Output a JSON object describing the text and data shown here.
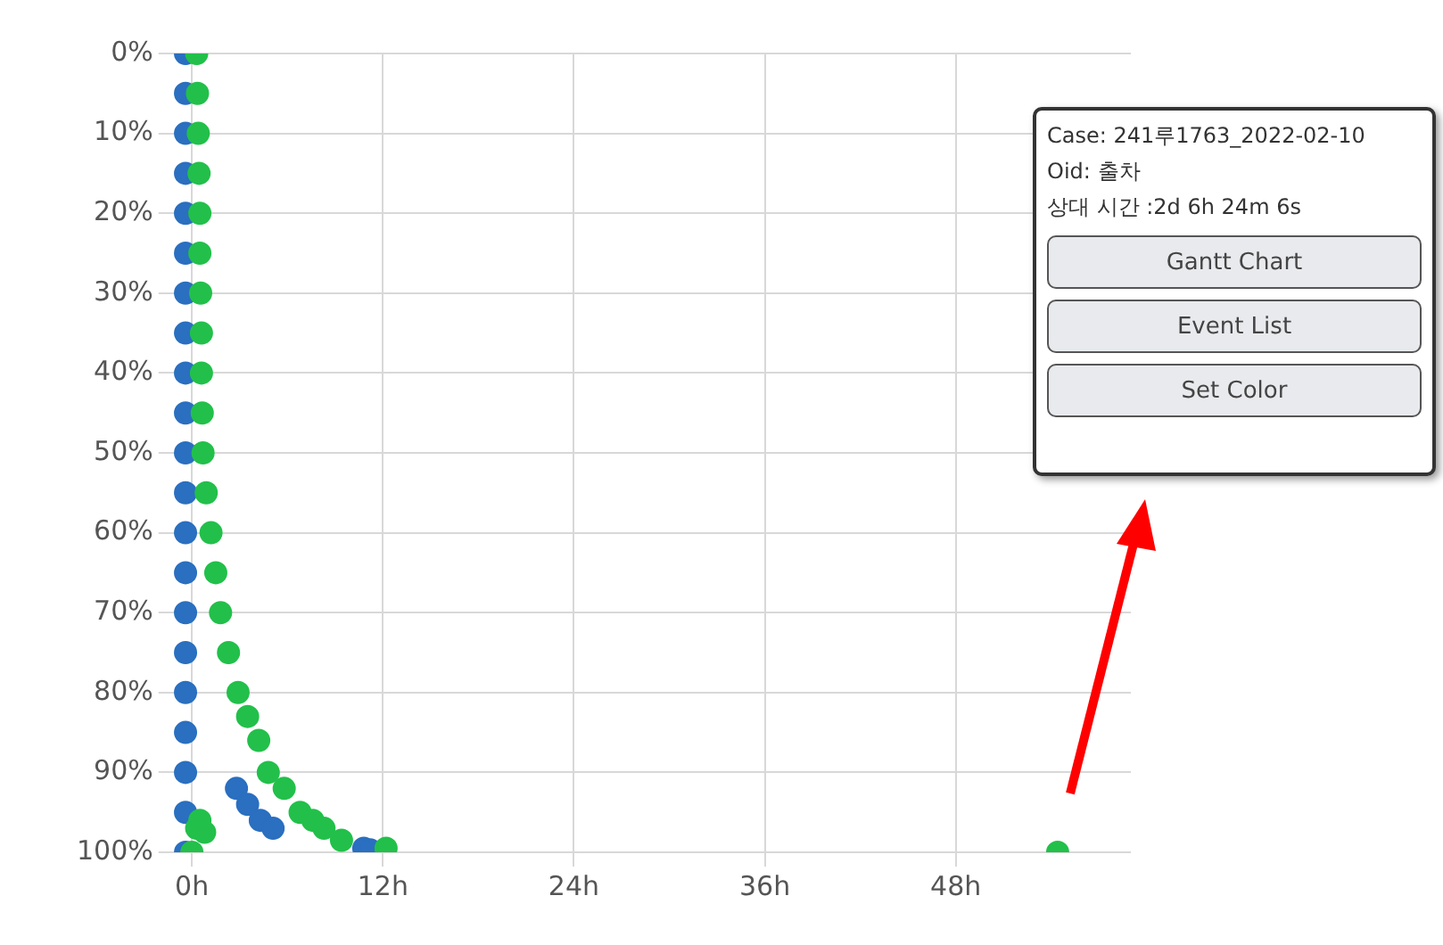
{
  "chart_data": {
    "type": "scatter",
    "xlim": [
      -1.2,
      59
    ],
    "xticks": [
      {
        "value": 0,
        "label": "0h"
      },
      {
        "value": 12,
        "label": "12h"
      },
      {
        "value": 24,
        "label": "24h"
      },
      {
        "value": 36,
        "label": "36h"
      },
      {
        "value": 48,
        "label": "48h"
      }
    ],
    "ylim": [
      100,
      0
    ],
    "yticks": [
      {
        "value": 0,
        "label": "0%"
      },
      {
        "value": 10,
        "label": "10%"
      },
      {
        "value": 20,
        "label": "20%"
      },
      {
        "value": 30,
        "label": "30%"
      },
      {
        "value": 40,
        "label": "40%"
      },
      {
        "value": 50,
        "label": "50%"
      },
      {
        "value": 60,
        "label": "60%"
      },
      {
        "value": 70,
        "label": "70%"
      },
      {
        "value": 80,
        "label": "80%"
      },
      {
        "value": 90,
        "label": "90%"
      },
      {
        "value": 100,
        "label": "100%"
      }
    ],
    "grid": true,
    "legend": false,
    "marker": "circle",
    "series": [
      {
        "color": "#2a6fc0",
        "x": [
          -0.4,
          -0.4,
          -0.4,
          -0.4,
          -0.4,
          -0.4,
          -0.4,
          -0.4,
          -0.4,
          -0.4,
          -0.4,
          -0.4,
          -0.4,
          -0.4,
          -0.4,
          -0.4,
          -0.4,
          -0.4,
          -0.4,
          -0.4,
          -0.4,
          2.8,
          3.5,
          4.3,
          5.1,
          10.8,
          11.2
        ],
        "values": [
          0,
          5,
          10,
          15,
          20,
          25,
          30,
          35,
          40,
          45,
          50,
          55,
          60,
          65,
          70,
          75,
          80,
          85,
          90,
          95,
          100,
          92,
          94,
          96,
          97,
          99.5,
          99.7
        ]
      },
      {
        "color": "#22c04a",
        "x": [
          0.3,
          0.35,
          0.4,
          0.45,
          0.5,
          0.5,
          0.55,
          0.6,
          0.6,
          0.65,
          0.7,
          0.9,
          1.2,
          1.5,
          1.8,
          2.3,
          2.9,
          3.5,
          4.2,
          4.8,
          5.8,
          6.8,
          7.6,
          8.3,
          9.4,
          12.2,
          0,
          0.3,
          0.5,
          0.8,
          54.4
        ],
        "values": [
          0,
          5,
          10,
          15,
          20,
          25,
          30,
          35,
          40,
          45,
          50,
          55,
          60,
          65,
          70,
          75,
          80,
          83,
          86,
          90,
          92,
          95,
          96,
          97,
          98.5,
          99.5,
          100,
          97,
          96,
          97.5,
          100
        ]
      }
    ],
    "annotations": [
      "Case: 241루1763_2022-02-10",
      "Oid: 출차",
      "상대 시간 :2d 6h 24m 6s",
      "Gantt Chart",
      "Event List",
      "Set Color"
    ]
  }
}
